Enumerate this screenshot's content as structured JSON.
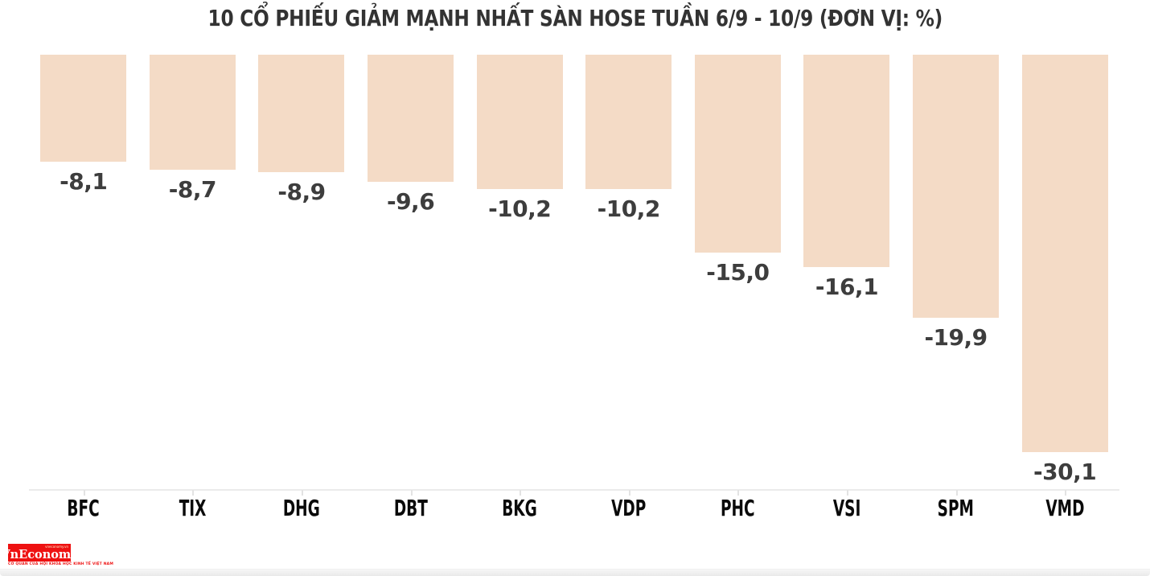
{
  "title": "10 CỔ PHIẾU GIẢM MẠNH NHẤT SÀN HOSE TUẦN 6/9 - 10/9 (ĐƠN VỊ: %)",
  "chart_data": {
    "type": "bar",
    "orientation": "vertical",
    "direction": "negative-down-from-top-baseline",
    "title": "10 CỔ PHIẾU GIẢM MẠNH NHẤT SÀN HOSE TUẦN 6/9 - 10/9 (ĐƠN VỊ: %)",
    "unit": "%",
    "categories": [
      "BFC",
      "TIX",
      "DHG",
      "DBT",
      "BKG",
      "VDP",
      "PHC",
      "VSI",
      "SPM",
      "VMD"
    ],
    "values": [
      -8.1,
      -8.7,
      -8.9,
      -9.6,
      -10.2,
      -10.2,
      -15.0,
      -16.1,
      -19.9,
      -30.1
    ],
    "value_labels": [
      "-8,1",
      "-8,7",
      "-8,9",
      "-9,6",
      "-10,2",
      "-10,2",
      "-15,0",
      "-16,1",
      "-19,9",
      "-30,1"
    ],
    "xlabel": "",
    "ylabel": "",
    "ylim": [
      -32,
      0
    ],
    "baseline": 0,
    "grid": false,
    "legend": false,
    "bar_color": "#f4dbc6",
    "value_label_color": "#3d3d3d",
    "category_label_color": "#0a0a0a",
    "title_color": "#333333",
    "axis_color": "#ebebeb"
  },
  "logo": {
    "brand": "VnEconomy",
    "small_text": "vneconomy.vn",
    "tagline": "CƠ QUAN CỦA HỘI KHOA HỌC KINH TẾ VIỆT NAM",
    "bg_color": "#ee1111",
    "text_color": "#ffffff"
  }
}
